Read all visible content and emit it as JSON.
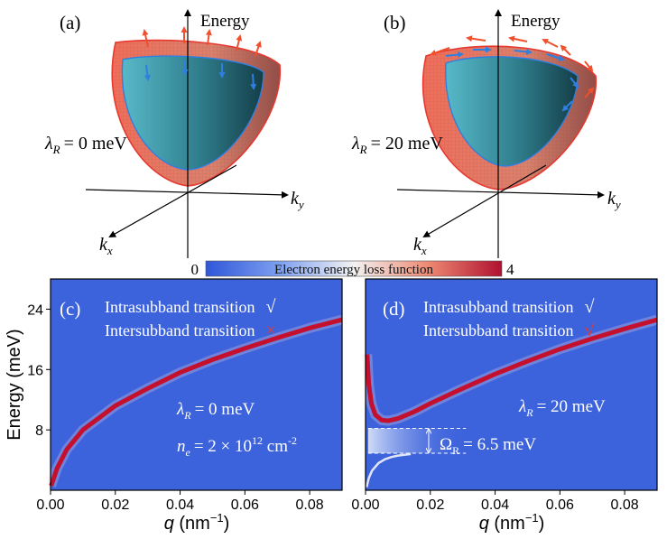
{
  "panel_a": {
    "label": "(a)",
    "axis_energy": "Energy",
    "axis_kx": "k",
    "axis_kx_sub": "x",
    "axis_ky": "k",
    "axis_ky_sub": "y",
    "param_symbol": "λ",
    "param_sub": "R",
    "param_value": "= 0 meV"
  },
  "panel_b": {
    "label": "(b)",
    "axis_energy": "Energy",
    "axis_kx": "k",
    "axis_kx_sub": "x",
    "axis_ky": "k",
    "axis_ky_sub": "y",
    "param_symbol": "λ",
    "param_sub": "R",
    "param_value": "= 20 meV"
  },
  "colorbar": {
    "label": "Electron energy loss function",
    "min": "0",
    "max": "4",
    "colors": [
      "#2f56d9",
      "#7ea0f0",
      "#f2f2f2",
      "#ee8a73",
      "#b01030"
    ]
  },
  "chart_data": [
    {
      "type": "heatmap",
      "panel": "(c)",
      "xlabel": "q (nm⁻¹)",
      "ylabel": "Energy (meV)",
      "xlim": [
        0.0,
        0.09
      ],
      "ylim": [
        0,
        28
      ],
      "xticks": [
        "0.00",
        "0.02",
        "0.04",
        "0.06",
        "0.08"
      ],
      "yticks": [
        "8",
        "16",
        "24"
      ],
      "legend": [
        {
          "text": "Intrasubband transition",
          "mark": "√",
          "color": "#ffffff"
        },
        {
          "text": "Intersubband transition",
          "mark": "×",
          "color": "#e8382f"
        }
      ],
      "annotations": {
        "lambda_symbol": "λ",
        "lambda_sub": "R",
        "lambda_value": "= 0 meV",
        "ne_symbol": "n",
        "ne_sub": "e",
        "ne_value": "= 2 × 10",
        "ne_exp": "12",
        "ne_unit": " cm",
        "ne_unit_exp": "-2"
      },
      "series": [
        {
          "name": "intrasubband plasmon",
          "x": [
            0.0002,
            0.002,
            0.005,
            0.01,
            0.02,
            0.03,
            0.04,
            0.05,
            0.06,
            0.07,
            0.08,
            0.09
          ],
          "y": [
            0.6,
            2.9,
            5.4,
            8.0,
            11.2,
            13.5,
            15.6,
            17.3,
            18.8,
            20.2,
            21.5,
            22.6
          ]
        }
      ]
    },
    {
      "type": "heatmap",
      "panel": "(d)",
      "xlabel": "q (nm⁻¹)",
      "ylabel": "",
      "xlim": [
        0.0,
        0.09
      ],
      "ylim": [
        0,
        28
      ],
      "xticks": [
        "0.00",
        "0.02",
        "0.04",
        "0.06",
        "0.08"
      ],
      "yticks": [],
      "legend": [
        {
          "text": "Intrasubband transition",
          "mark": "√",
          "color": "#ffffff"
        },
        {
          "text": "Intersubband transition",
          "mark": "√",
          "color": "#e8382f"
        }
      ],
      "annotations": {
        "lambda_symbol": "λ",
        "lambda_sub": "R",
        "lambda_value": "= 20 meV",
        "omega_symbol": "Ω",
        "omega_sub": "R",
        "omega_value": "=  6.5 meV",
        "gap_upper": 8.2,
        "gap_lower": 4.9
      },
      "series": [
        {
          "name": "upper branch",
          "x": [
            0.0005,
            0.001,
            0.0018,
            0.003,
            0.005,
            0.007,
            0.01,
            0.015,
            0.02,
            0.03,
            0.04,
            0.05,
            0.06,
            0.07,
            0.08,
            0.09
          ],
          "y": [
            18.0,
            14.0,
            11.5,
            10.0,
            9.3,
            9.2,
            9.5,
            10.4,
            11.5,
            13.5,
            15.4,
            17.1,
            18.7,
            20.1,
            21.4,
            22.6
          ]
        },
        {
          "name": "lower branch",
          "x": [
            0.0003,
            0.001,
            0.002,
            0.004,
            0.006,
            0.008,
            0.01,
            0.014
          ],
          "y": [
            0.4,
            1.6,
            2.6,
            3.6,
            4.1,
            4.4,
            4.6,
            4.8
          ]
        }
      ]
    }
  ]
}
